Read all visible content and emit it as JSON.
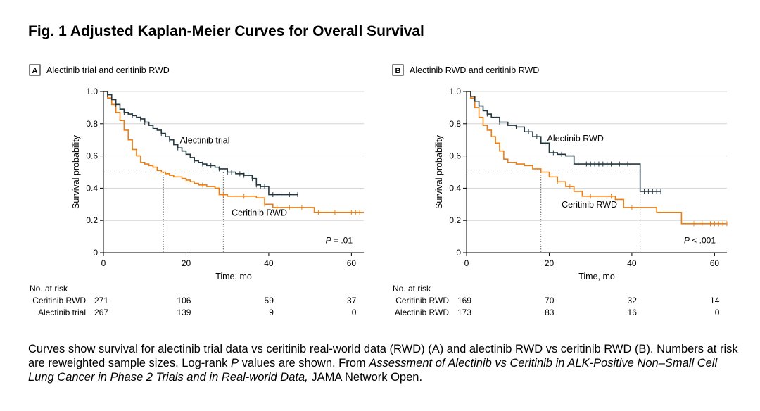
{
  "figure": {
    "title": "Fig. 1 Adjusted Kaplan-Meier Curves for Overall Survival",
    "caption_parts": [
      {
        "text": "Curves show survival for alectinib trial data vs ceritinib real-world data (RWD) (A) and alectinib RWD vs ceritinib RWD (B). Numbers at risk are reweighted sample sizes. Log-rank ",
        "italic": false
      },
      {
        "text": "P",
        "italic": true
      },
      {
        "text": " values are shown. From ",
        "italic": false
      },
      {
        "text": "Assessment of Alectinib vs Ceritinib in ALK-Positive Non–Small Cell Lung Cancer in Phase 2 Trials and in Real-world Data,",
        "italic": true
      },
      {
        "text": " JAMA Network Open.",
        "italic": false
      }
    ]
  },
  "colors": {
    "alectinib": "#23373f",
    "ceritinib": "#ee7d11",
    "axis": "#000000",
    "grid": "#cccccc"
  },
  "chart_data": [
    {
      "type": "line",
      "panel_label": "A",
      "title": "Alectinib trial and ceritinib RWD",
      "xlabel": "Time, mo",
      "ylabel": "Survival probability",
      "xlim": [
        0,
        63
      ],
      "ylim": [
        0,
        1.0
      ],
      "xticks": [
        0,
        20,
        40,
        60
      ],
      "yticks": [
        0,
        0.2,
        0.4,
        0.6,
        0.8,
        1.0
      ],
      "ytick_labels": [
        "0",
        "0.2",
        "0.4",
        "0.6",
        "0.8",
        "1.0"
      ],
      "grid": "horizontal",
      "p_value": {
        "prefix": "P",
        "text": " = .01"
      },
      "median_line": {
        "y": 0.5,
        "x_values": [
          14.5,
          29
        ]
      },
      "series": [
        {
          "name": "Alectinib trial",
          "color_key": "alectinib",
          "x": [
            0,
            1,
            2,
            3,
            4,
            5,
            6,
            7,
            8,
            9,
            10,
            11,
            12,
            13,
            14,
            15,
            16,
            17,
            18,
            19,
            20,
            21,
            22,
            23,
            24,
            25,
            26,
            27,
            28,
            29,
            30,
            31,
            32,
            33,
            34,
            35,
            36,
            37,
            38,
            39,
            40,
            42,
            45,
            47
          ],
          "y": [
            1.0,
            0.98,
            0.95,
            0.92,
            0.89,
            0.87,
            0.86,
            0.85,
            0.84,
            0.83,
            0.81,
            0.79,
            0.77,
            0.76,
            0.74,
            0.72,
            0.7,
            0.67,
            0.65,
            0.63,
            0.61,
            0.59,
            0.57,
            0.56,
            0.55,
            0.54,
            0.54,
            0.53,
            0.52,
            0.52,
            0.5,
            0.5,
            0.49,
            0.49,
            0.48,
            0.48,
            0.46,
            0.42,
            0.41,
            0.41,
            0.36,
            0.36,
            0.36,
            0.36
          ],
          "censor_x": [
            1,
            3,
            5,
            7,
            9,
            10,
            12,
            14,
            16,
            18,
            22,
            24,
            26,
            28,
            30,
            31,
            33,
            34,
            35,
            36,
            37,
            38,
            39,
            41,
            43,
            45,
            47
          ]
        },
        {
          "name": "Ceritinib RWD",
          "color_key": "ceritinib",
          "x": [
            0,
            1,
            2,
            3,
            4,
            5,
            6,
            7,
            8,
            9,
            10,
            11,
            12,
            13,
            14,
            15,
            16,
            17,
            18,
            19,
            20,
            21,
            22,
            23,
            24,
            25,
            26,
            27,
            28,
            29,
            30,
            31,
            32,
            33,
            34,
            35,
            36,
            37,
            38,
            39,
            40,
            41,
            42,
            43,
            44,
            45,
            46,
            47,
            48,
            49,
            50,
            51,
            52,
            53,
            54,
            55,
            56,
            57,
            58,
            59,
            60,
            61,
            62,
            63
          ],
          "y": [
            1.0,
            0.96,
            0.92,
            0.87,
            0.82,
            0.76,
            0.7,
            0.64,
            0.6,
            0.56,
            0.55,
            0.54,
            0.53,
            0.51,
            0.5,
            0.49,
            0.48,
            0.47,
            0.47,
            0.46,
            0.45,
            0.44,
            0.43,
            0.42,
            0.42,
            0.41,
            0.41,
            0.4,
            0.36,
            0.36,
            0.35,
            0.35,
            0.35,
            0.35,
            0.35,
            0.35,
            0.35,
            0.34,
            0.34,
            0.3,
            0.3,
            0.28,
            0.28,
            0.28,
            0.28,
            0.28,
            0.28,
            0.28,
            0.28,
            0.28,
            0.28,
            0.25,
            0.25,
            0.25,
            0.25,
            0.25,
            0.25,
            0.25,
            0.25,
            0.25,
            0.25,
            0.25,
            0.25,
            0.25
          ],
          "censor_x": [
            12,
            20,
            24,
            29,
            34,
            39,
            42,
            45,
            48,
            52,
            56,
            60,
            61,
            62
          ]
        }
      ],
      "labels": [
        {
          "text": "Alectinib trial",
          "x": 18.5,
          "y": 0.68
        },
        {
          "text": "Ceritinib RWD",
          "x": 31,
          "y": 0.23
        }
      ],
      "risk_table": {
        "header": "No. at risk",
        "columns_x": [
          0,
          20,
          40,
          60
        ],
        "rows": [
          {
            "label": "Ceritinib RWD",
            "values": [
              "271",
              "106",
              "59",
              "37"
            ]
          },
          {
            "label": "Alectinib trial",
            "values": [
              "267",
              "139",
              "9",
              "0"
            ]
          }
        ]
      }
    },
    {
      "type": "line",
      "panel_label": "B",
      "title": "Alectinib RWD and ceritinib RWD",
      "xlabel": "Time, mo",
      "ylabel": "Survival probability",
      "xlim": [
        0,
        63
      ],
      "ylim": [
        0,
        1.0
      ],
      "xticks": [
        0,
        20,
        40,
        60
      ],
      "yticks": [
        0,
        0.2,
        0.4,
        0.6,
        0.8,
        1.0
      ],
      "ytick_labels": [
        "0",
        "0.2",
        "0.4",
        "0.6",
        "0.8",
        "1.0"
      ],
      "grid": "horizontal",
      "p_value": {
        "prefix": "P",
        "text": " < .001"
      },
      "median_line": {
        "y": 0.5,
        "x_values": [
          18,
          42
        ]
      },
      "series": [
        {
          "name": "Alectinib RWD",
          "color_key": "alectinib",
          "x": [
            0,
            1,
            2,
            3,
            4,
            5,
            6,
            8,
            10,
            12,
            14,
            16,
            18,
            20,
            22,
            24,
            26,
            28,
            30,
            32,
            34,
            36,
            38,
            40,
            42,
            43,
            45,
            47
          ],
          "y": [
            1.0,
            0.97,
            0.94,
            0.91,
            0.88,
            0.86,
            0.84,
            0.81,
            0.79,
            0.78,
            0.75,
            0.72,
            0.68,
            0.62,
            0.61,
            0.6,
            0.55,
            0.55,
            0.55,
            0.55,
            0.55,
            0.55,
            0.55,
            0.55,
            0.38,
            0.38,
            0.38,
            0.38
          ],
          "censor_x": [
            3,
            5,
            8,
            12,
            15,
            17,
            19,
            21,
            23,
            27,
            29,
            30,
            31,
            32,
            33,
            34,
            35,
            37,
            39,
            43,
            44,
            45,
            46,
            47
          ]
        },
        {
          "name": "Ceritinib RWD",
          "color_key": "ceritinib",
          "x": [
            0,
            1,
            2,
            3,
            4,
            5,
            6,
            7,
            8,
            9,
            10,
            12,
            14,
            16,
            18,
            20,
            22,
            24,
            26,
            28,
            30,
            32,
            34,
            36,
            38,
            40,
            42,
            44,
            46,
            48,
            50,
            52,
            54,
            56,
            58,
            60,
            62,
            63
          ],
          "y": [
            1.0,
            0.96,
            0.9,
            0.84,
            0.79,
            0.76,
            0.72,
            0.68,
            0.63,
            0.58,
            0.56,
            0.55,
            0.54,
            0.52,
            0.5,
            0.47,
            0.44,
            0.41,
            0.38,
            0.35,
            0.35,
            0.35,
            0.35,
            0.33,
            0.28,
            0.28,
            0.28,
            0.28,
            0.25,
            0.25,
            0.25,
            0.18,
            0.18,
            0.18,
            0.18,
            0.18,
            0.18,
            0.18
          ],
          "censor_x": [
            22,
            25,
            30,
            35,
            40,
            55,
            57,
            59,
            60,
            61,
            62,
            63
          ]
        }
      ],
      "labels": [
        {
          "text": "Alectinib RWD",
          "x": 19.5,
          "y": 0.69
        },
        {
          "text": "Ceritinib RWD",
          "x": 23,
          "y": 0.28
        }
      ],
      "risk_table": {
        "header": "No. at risk",
        "columns_x": [
          0,
          20,
          40,
          60
        ],
        "rows": [
          {
            "label": "Ceritinib RWD",
            "values": [
              "169",
              "70",
              "32",
              "14"
            ]
          },
          {
            "label": "Alectinib RWD",
            "values": [
              "173",
              "83",
              "16",
              "0"
            ]
          }
        ]
      }
    }
  ]
}
